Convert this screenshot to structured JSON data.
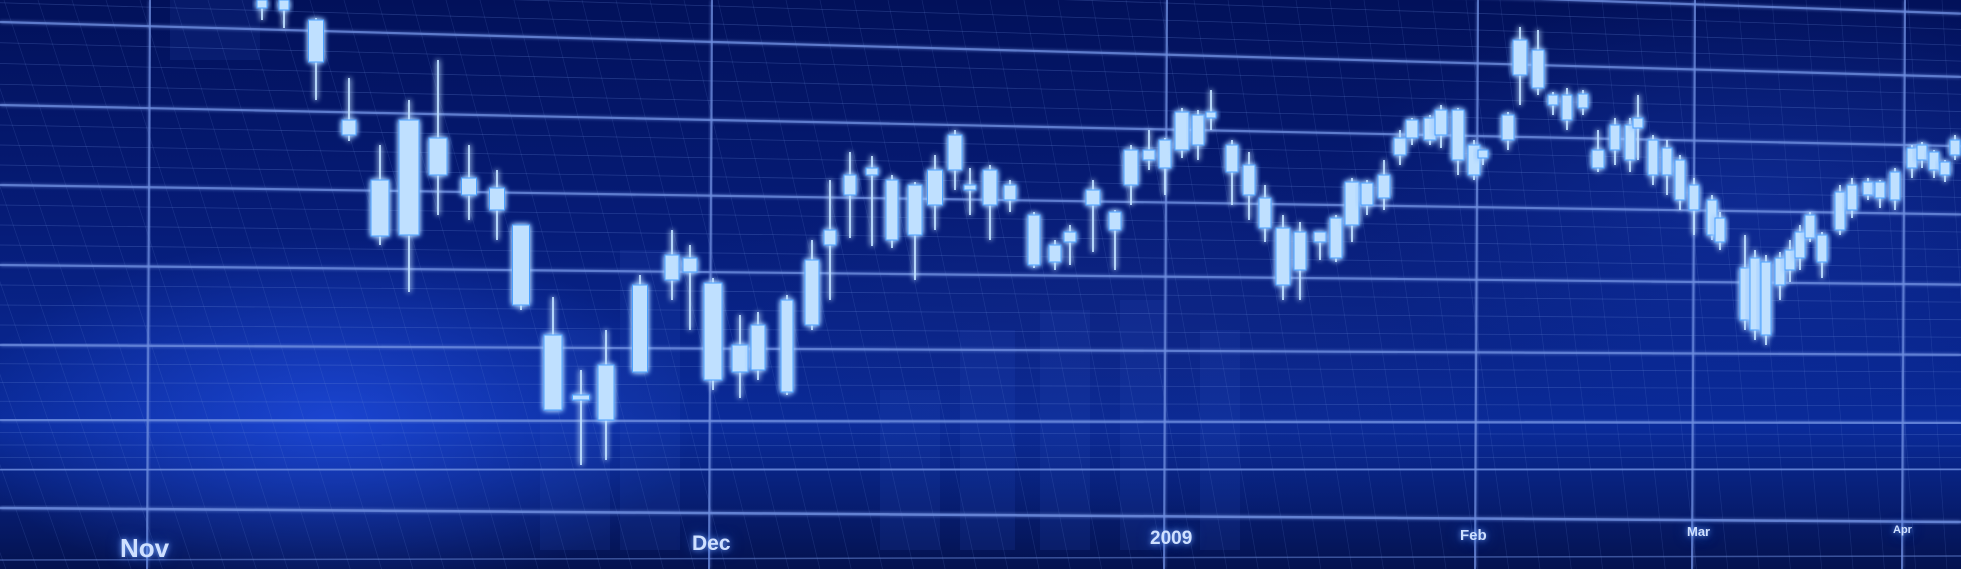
{
  "x_axis": {
    "labels": [
      "Nov",
      "Dec",
      "2009",
      "Feb",
      "Mar",
      "Apr"
    ]
  },
  "colors": {
    "background": "#061c78",
    "candle": "#bfe0ff",
    "candle_glow": "#4aa0ff",
    "grid": "#6f8fe0"
  }
}
